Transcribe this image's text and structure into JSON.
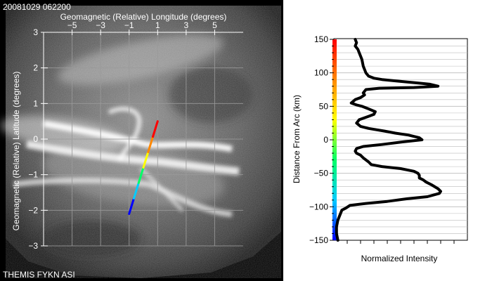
{
  "header": {
    "timestamp": "20081029 062200",
    "station_label": "THEMIS FYKN ASI"
  },
  "chart_data": [
    {
      "type": "image",
      "title": "",
      "xlabel": "Geomagnetic (Relative) Longitude (degrees)",
      "ylabel": "Geomagnetic (Relative) Latitude (degrees)",
      "xlim": [
        -7,
        7
      ],
      "ylim": [
        -3,
        3
      ],
      "x_ticks": [
        "−5",
        "−3",
        "−1",
        "1",
        "3",
        "5"
      ],
      "x_tick_values": [
        -5,
        -3,
        -1,
        1,
        3,
        5
      ],
      "y_ticks": [
        "3",
        "2",
        "1",
        "0",
        "−1",
        "−2",
        "−3"
      ],
      "y_tick_values": [
        3,
        2,
        1,
        0,
        -1,
        -2,
        -3
      ],
      "grid": true,
      "colors": {
        "background": "#000000",
        "axis": "#ffffff",
        "grid": "#9a9a9a"
      },
      "profile_line": {
        "start": [
          -1.0,
          -2.1
        ],
        "end": [
          1.0,
          0.5
        ],
        "colors": [
          "#0000ff",
          "#00ccff",
          "#00ff66",
          "#ffff00",
          "#ff8800",
          "#ff0000"
        ]
      }
    },
    {
      "type": "line",
      "title": "",
      "xlabel": "Normalized Intensity",
      "ylabel": "Distance From Arc (km)",
      "xlim": [
        0,
        1
      ],
      "ylim": [
        -150,
        150
      ],
      "y_ticks": [
        "150",
        "100",
        "50",
        "0",
        "−50",
        "−100",
        "−150"
      ],
      "y_tick_values": [
        150,
        100,
        50,
        0,
        -50,
        -100,
        -150
      ],
      "grid": true,
      "colors": {
        "line": "#000000",
        "grid": "#bbbbbb"
      },
      "series": [
        {
          "x": [
            0.16,
            0.17,
            0.16,
            0.18,
            0.19,
            0.21,
            0.22,
            0.24,
            0.26,
            0.3,
            0.36,
            0.46,
            0.62,
            0.72,
            0.78,
            0.6,
            0.34,
            0.24,
            0.22,
            0.23,
            0.2,
            0.16,
            0.13,
            0.17,
            0.21,
            0.25,
            0.31,
            0.3,
            0.26,
            0.19,
            0.17,
            0.2,
            0.26,
            0.38,
            0.46,
            0.56,
            0.64,
            0.66,
            0.52,
            0.36,
            0.22,
            0.17,
            0.16,
            0.17,
            0.2,
            0.22,
            0.24,
            0.26,
            0.28,
            0.36,
            0.5,
            0.6,
            0.63,
            0.64,
            0.64,
            0.67,
            0.69,
            0.73,
            0.78,
            0.8,
            0.79,
            0.7,
            0.55,
            0.4,
            0.24,
            0.12,
            0.09,
            0.06,
            0.05,
            0.04,
            0.03,
            0.02,
            0.02,
            0.03
          ],
          "y": [
            150,
            145,
            140,
            135,
            130,
            120,
            110,
            100,
            95,
            92,
            90,
            88,
            85,
            83,
            80,
            78,
            77,
            75,
            70,
            67,
            63,
            60,
            55,
            52,
            50,
            47,
            42,
            38,
            35,
            30,
            25,
            20,
            17,
            13,
            10,
            7,
            3,
            0,
            -3,
            -7,
            -10,
            -13,
            -17,
            -20,
            -23,
            -27,
            -30,
            -33,
            -37,
            -40,
            -43,
            -47,
            -50,
            -53,
            -57,
            -60,
            -63,
            -67,
            -73,
            -77,
            -80,
            -85,
            -88,
            -92,
            -95,
            -98,
            -102,
            -105,
            -110,
            -115,
            -120,
            -130,
            -140,
            -150
          ]
        }
      ],
      "color_bar": [
        "#0000ff",
        "#00ccff",
        "#00ff66",
        "#ffff00",
        "#ff8800",
        "#ff0000"
      ]
    }
  ]
}
